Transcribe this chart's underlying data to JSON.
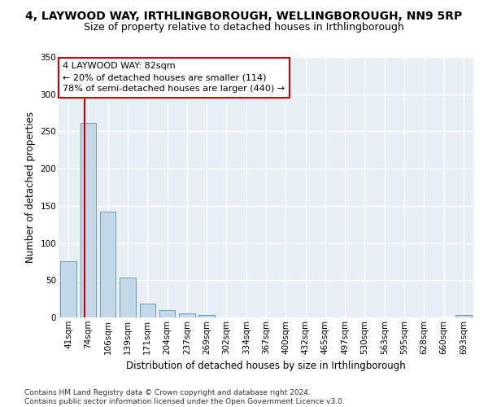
{
  "title": "4, LAYWOOD WAY, IRTHLINGBOROUGH, WELLINGBOROUGH, NN9 5RP",
  "subtitle": "Size of property relative to detached houses in Irthlingborough",
  "xlabel": "Distribution of detached houses by size in Irthlingborough",
  "ylabel": "Number of detached properties",
  "categories": [
    "41sqm",
    "74sqm",
    "106sqm",
    "139sqm",
    "171sqm",
    "204sqm",
    "237sqm",
    "269sqm",
    "302sqm",
    "334sqm",
    "367sqm",
    "400sqm",
    "432sqm",
    "465sqm",
    "497sqm",
    "530sqm",
    "563sqm",
    "595sqm",
    "628sqm",
    "660sqm",
    "693sqm"
  ],
  "values": [
    75,
    261,
    142,
    54,
    19,
    10,
    5,
    3,
    0,
    0,
    0,
    0,
    0,
    0,
    0,
    0,
    0,
    0,
    0,
    0,
    3
  ],
  "bar_color": "#c5d8e8",
  "bar_edge_color": "#5b8db8",
  "property_line_color": "#cc0000",
  "annotation_text": "4 LAYWOOD WAY: 82sqm\n← 20% of detached houses are smaller (114)\n78% of semi-detached houses are larger (440) →",
  "annotation_box_color": "#ffffff",
  "annotation_box_edge": "#cc0000",
  "ylim": [
    0,
    350
  ],
  "yticks": [
    0,
    50,
    100,
    150,
    200,
    250,
    300,
    350
  ],
  "footer": "Contains HM Land Registry data © Crown copyright and database right 2024.\nContains public sector information licensed under the Open Government Licence v3.0.",
  "background_color": "#e8eef5",
  "grid_color": "#ffffff",
  "title_fontsize": 10,
  "subtitle_fontsize": 9,
  "axis_label_fontsize": 8.5,
  "tick_fontsize": 7.5,
  "annotation_fontsize": 8,
  "footer_fontsize": 6.5
}
